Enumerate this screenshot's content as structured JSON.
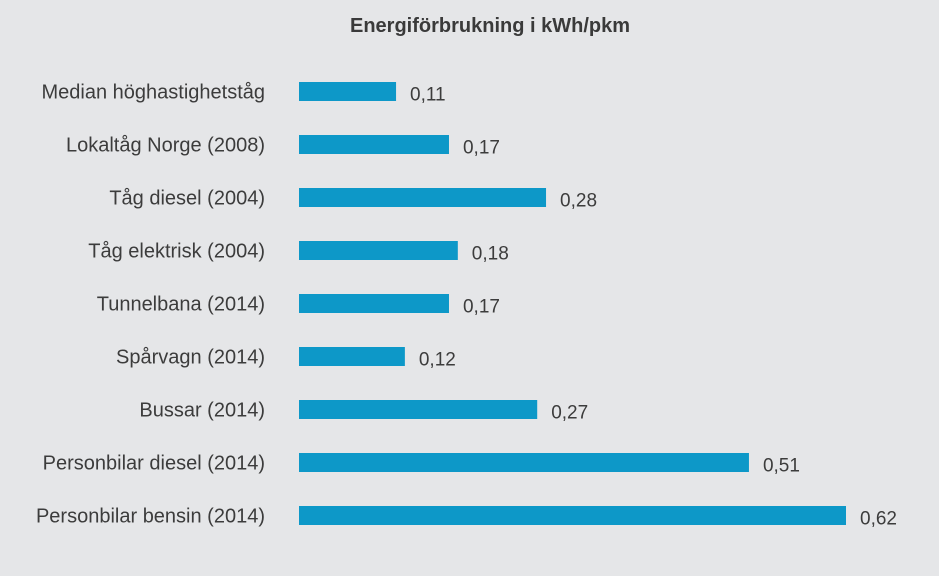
{
  "chart_data": {
    "type": "bar",
    "orientation": "horizontal",
    "title": "Energiförbrukning i kWh/pkm",
    "xlabel": "",
    "ylabel": "",
    "categories": [
      "Median höghastighetståg",
      "Lokaltåg Norge (2008)",
      "Tåg diesel (2004)",
      "Tåg elektrisk (2004)",
      "Tunnelbana (2014)",
      "Spårvagn (2014)",
      "Bussar (2014)",
      "Personbilar diesel (2014)",
      "Personbilar bensin (2014)"
    ],
    "values": [
      0.11,
      0.17,
      0.28,
      0.18,
      0.17,
      0.12,
      0.27,
      0.51,
      0.62
    ],
    "value_labels": [
      "0,11",
      "0,17",
      "0,28",
      "0,18",
      "0,17",
      "0,12",
      "0,27",
      "0,51",
      "0,62"
    ],
    "xlim": [
      0,
      0.62
    ],
    "grid": false,
    "legend": "none",
    "bar_color": "#0d98c8",
    "background_color": "#e5e6e8"
  }
}
